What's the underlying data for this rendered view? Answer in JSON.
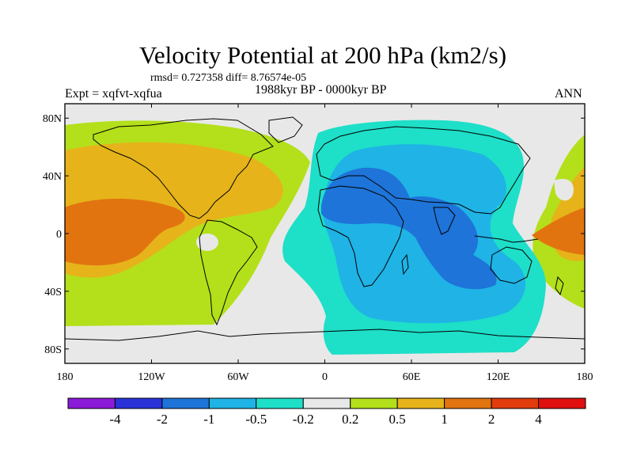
{
  "header": {
    "title": "Velocity Potential at 200 hPa (km2/s)",
    "stats": "rmsd= 0.727358  diff= 8.76574e-05",
    "experiment": "Expt = xqfvt-xqfua",
    "period": "1988kyr BP - 0000kyr BP",
    "season": "ANN"
  },
  "map": {
    "lat_labels": [
      "80N",
      "40N",
      "0",
      "40S",
      "80S"
    ],
    "lon_labels": [
      "180",
      "120W",
      "60W",
      "0",
      "60E",
      "120E",
      "180"
    ],
    "lat_values": [
      80,
      40,
      0,
      -40,
      -80
    ],
    "lon_values": [
      -180,
      -120,
      -60,
      0,
      60,
      120,
      180
    ],
    "lon_range": [
      -180,
      180
    ],
    "lat_range": [
      -90,
      90
    ]
  },
  "colorbar": {
    "labels": [
      "-4",
      "-2",
      "-1",
      "-0.5",
      "-0.2",
      "0.2",
      "0.5",
      "1",
      "2",
      "4"
    ],
    "colors": [
      "#8c1ad9",
      "#2a33d8",
      "#1e74d8",
      "#1fb3e6",
      "#1edfc8",
      "#e8e8e8",
      "#b3e01a",
      "#e6b41a",
      "#e27410",
      "#e23c0c",
      "#e01010"
    ]
  },
  "palette": {
    "land_outline": "#000000",
    "neutral": "#e8e8e8",
    "light_green": "#b3e01a",
    "gold": "#e6b41a",
    "orange": "#e27410",
    "cyan": "#1edfc8",
    "sky": "#1fb3e6",
    "blue": "#1e74d8"
  }
}
